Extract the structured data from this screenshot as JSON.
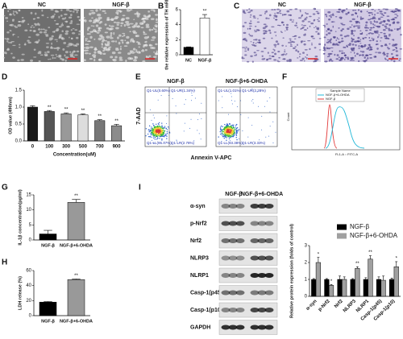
{
  "panel_labels": [
    "A",
    "B",
    "C",
    "D",
    "E",
    "F",
    "G",
    "H",
    "I"
  ],
  "panel_a": {
    "labels": [
      "NC",
      "NGF-β"
    ]
  },
  "panel_c": {
    "labels": [
      "NC",
      "NGF-β"
    ]
  },
  "panel_e": {
    "titles": [
      "NGF-β",
      "NGF-β+6-OHDA"
    ],
    "y_label": "7-AAD",
    "x_label": "Annexin V-APC",
    "quadrants": [
      [
        "Q1-UL(0.60%)",
        "Q1-UR(1.34%)",
        "Q1-LL(95.47%)",
        "Q1-LR(2.78%)"
      ],
      [
        "Q1-UL(1.01%)",
        "Q1-UR(2.28%)",
        "Q1-LL(93.38%)",
        "Q1-LR(3.33%)"
      ]
    ]
  },
  "panel_f": {
    "legend_title": "Sample Name",
    "legend": [
      "NGF-β+6-OHDA",
      "NGF-β"
    ],
    "y_label": "Count",
    "x_label": "FL1-A :: FITC-A"
  },
  "panel_i_blot": {
    "columns": [
      "NGF-β",
      "NGF-β+6-OHDA"
    ],
    "rows": [
      "α-syn",
      "p-Nrf2",
      "Nrf2",
      "NLRP3",
      "NLRP1",
      "Casp-1(p45)",
      "Casp-1(p10)",
      "GAPDH"
    ]
  },
  "chart_data": [
    {
      "type": "bar",
      "ylabel": "the relative expression of TH mRNA",
      "categories": [
        "NC",
        "NGF-β"
      ],
      "values": [
        1,
        4.9
      ],
      "errors": [
        0.05,
        0.45
      ],
      "annotations": [
        null,
        "**"
      ],
      "colors": [
        "#000000",
        "#ffffff"
      ],
      "ylim": [
        0,
        6
      ],
      "yticks": [
        0,
        2,
        4,
        6
      ]
    },
    {
      "type": "bar",
      "ylabel": "OD value (490nm)",
      "xlabel": "Concentration(uM)",
      "categories": [
        "0",
        "100",
        "300",
        "500",
        "700",
        "900"
      ],
      "values": [
        1.0,
        0.87,
        0.8,
        0.77,
        0.6,
        0.45
      ],
      "errors": [
        0.04,
        0.03,
        0.03,
        0.03,
        0.03,
        0.04
      ],
      "annotations": [
        null,
        "**",
        "**",
        "**",
        "**",
        "**"
      ],
      "colors": [
        "#1a1a1a",
        "#555555",
        "#999999",
        "#dddddd",
        "#777777",
        "#8c8c8c"
      ],
      "ylim": [
        0,
        1.5
      ],
      "yticks": [
        {
          "value": 0,
          "label": "0.0"
        },
        0.5,
        {
          "value": 1,
          "label": "1.0"
        },
        1.5
      ]
    },
    {
      "type": "bar",
      "ylabel": "IL-1β concentration(pg/ml)",
      "categories": [
        "NGF-β",
        "NGF-β+6-OHDA"
      ],
      "values": [
        2,
        12.5
      ],
      "errors": [
        1.2,
        1.0
      ],
      "annotations": [
        null,
        "**"
      ],
      "colors": [
        "#000000",
        "#999999"
      ],
      "ylim": [
        0,
        15
      ],
      "yticks": [
        0,
        5,
        10,
        15
      ]
    },
    {
      "type": "bar",
      "ylabel": "LDH release (%)",
      "categories": [
        "NGF-β",
        "NGF-β+6-OHDA"
      ],
      "values": [
        18,
        48
      ],
      "errors": [
        0.8,
        0.8
      ],
      "annotations": [
        null,
        "**"
      ],
      "colors": [
        "#000000",
        "#999999"
      ],
      "ylim": [
        0,
        60
      ],
      "yticks": [
        0,
        20,
        40,
        60
      ]
    },
    {
      "type": "bar",
      "ylabel": "Relative protein expression (folds of control)",
      "categories": [
        "α-syn",
        "p-Nrf2",
        "Nrf2",
        "NLRP3",
        "NLRP1",
        "Casp-1(p45)",
        "Casp-1(p10)"
      ],
      "series": [
        {
          "name": "NGF-β",
          "color": "#000000",
          "values": [
            1,
            1,
            1,
            1,
            1,
            1,
            1
          ],
          "errors": [
            0.05,
            0.05,
            0.2,
            0.05,
            0.1,
            0.15,
            0.08
          ]
        },
        {
          "name": "NGF-β+6-OHDA",
          "color": "#a0a0a0",
          "values": [
            2.0,
            0.65,
            1.0,
            1.65,
            2.2,
            0.95,
            1.75
          ],
          "errors": [
            0.3,
            0.05,
            0.15,
            0.1,
            0.2,
            0.25,
            0.3
          ],
          "annotations": [
            "*",
            "*",
            null,
            "**",
            "**",
            null,
            "*"
          ]
        }
      ],
      "ylim": [
        0,
        3
      ],
      "yticks": [
        0,
        1,
        2,
        3
      ]
    }
  ]
}
